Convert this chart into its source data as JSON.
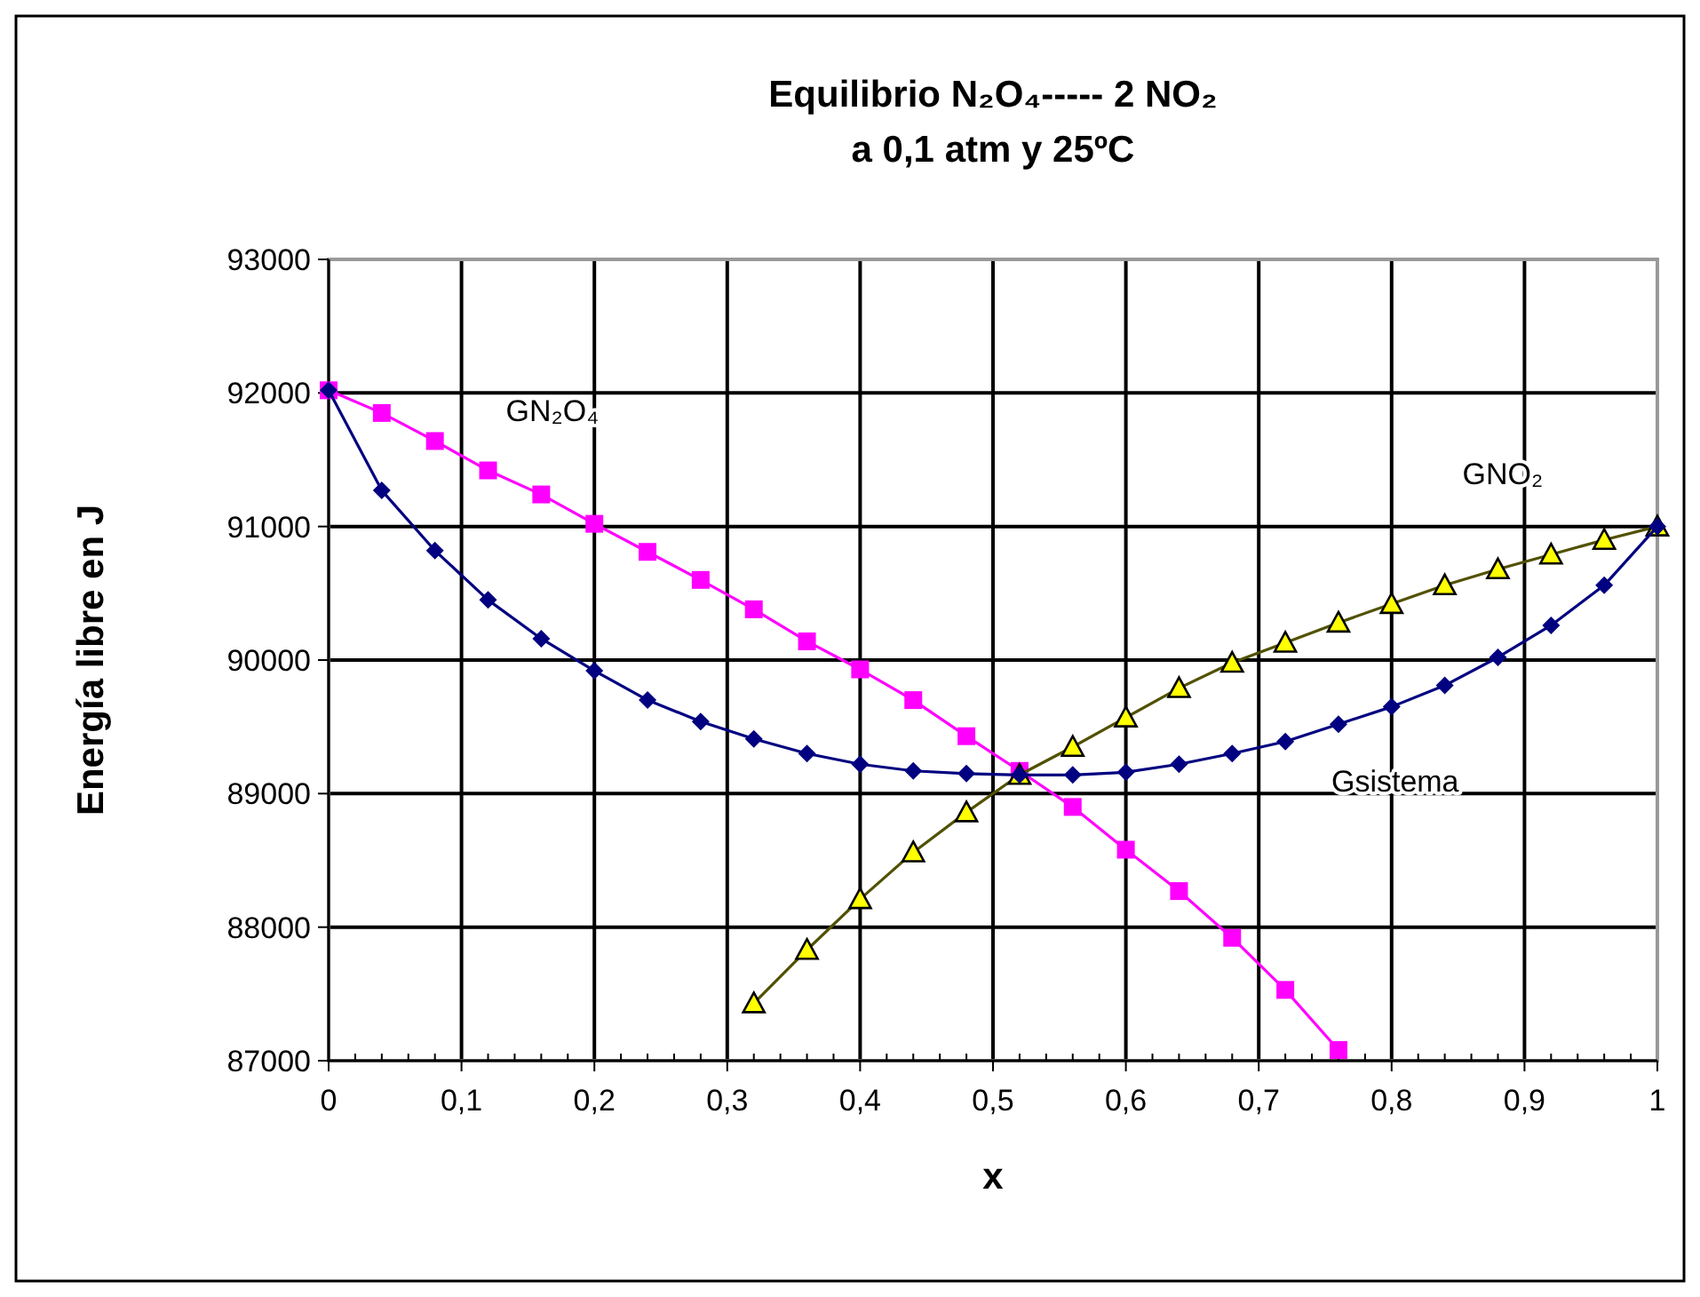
{
  "chart_data": {
    "type": "line",
    "title": "Equilibrio N₂O₄----- 2 NO₂",
    "subtitle": "a 0,1 atm y 25ºC",
    "xlabel": "x",
    "ylabel": "Energía libre en J",
    "xlim": [
      0,
      1
    ],
    "ylim": [
      87000,
      93000
    ],
    "xticks": [
      0,
      {
        "value": 0.1,
        "label": "0,1"
      },
      {
        "value": 0.2,
        "label": "0,2"
      },
      {
        "value": 0.3,
        "label": "0,3"
      },
      {
        "value": 0.4,
        "label": "0,4"
      },
      {
        "value": 0.5,
        "label": "0,5"
      },
      {
        "value": 0.6,
        "label": "0,6"
      },
      {
        "value": 0.7,
        "label": "0,7"
      },
      {
        "value": 0.8,
        "label": "0,8"
      },
      {
        "value": 0.9,
        "label": "0,9"
      },
      1
    ],
    "yticks": [
      87000,
      88000,
      89000,
      90000,
      91000,
      92000,
      93000
    ],
    "grid": true,
    "series": [
      {
        "name": "GN₂O₄",
        "color": "#ff00ff",
        "marker": "square",
        "x": [
          0,
          0.04,
          0.08,
          0.12,
          0.16,
          0.2,
          0.24,
          0.28,
          0.32,
          0.36,
          0.4,
          0.44,
          0.48,
          0.52,
          0.56,
          0.6,
          0.64,
          0.68,
          0.72,
          0.76
        ],
        "values": [
          92020,
          91850,
          91640,
          91420,
          91240,
          91020,
          90810,
          90600,
          90380,
          90140,
          89930,
          89700,
          89430,
          89170,
          88900,
          88580,
          88270,
          87920,
          87530,
          87080
        ]
      },
      {
        "name": "GNO₂",
        "color": "#ffff00",
        "marker": "triangle",
        "x": [
          0.32,
          0.36,
          0.4,
          0.44,
          0.48,
          0.52,
          0.56,
          0.6,
          0.64,
          0.68,
          0.72,
          0.76,
          0.8,
          0.84,
          0.88,
          0.92,
          0.96,
          1
        ],
        "values": [
          87430,
          87830,
          88210,
          88560,
          88860,
          89140,
          89350,
          89570,
          89790,
          89980,
          90130,
          90280,
          90420,
          90560,
          90680,
          90790,
          90900,
          91000
        ]
      },
      {
        "name": "Gsistema",
        "color": "#000080",
        "marker": "diamond",
        "x": [
          0,
          0.04,
          0.08,
          0.12,
          0.16,
          0.2,
          0.24,
          0.28,
          0.32,
          0.36,
          0.4,
          0.44,
          0.48,
          0.52,
          0.56,
          0.6,
          0.64,
          0.68,
          0.72,
          0.76,
          0.8,
          0.84,
          0.88,
          0.92,
          0.96,
          1
        ],
        "values": [
          92020,
          91270,
          90820,
          90450,
          90160,
          89920,
          89700,
          89540,
          89410,
          89300,
          89220,
          89170,
          89150,
          89140,
          89140,
          89160,
          89220,
          89300,
          89390,
          89520,
          89650,
          89810,
          90020,
          90260,
          90560,
          91000
        ]
      }
    ]
  }
}
